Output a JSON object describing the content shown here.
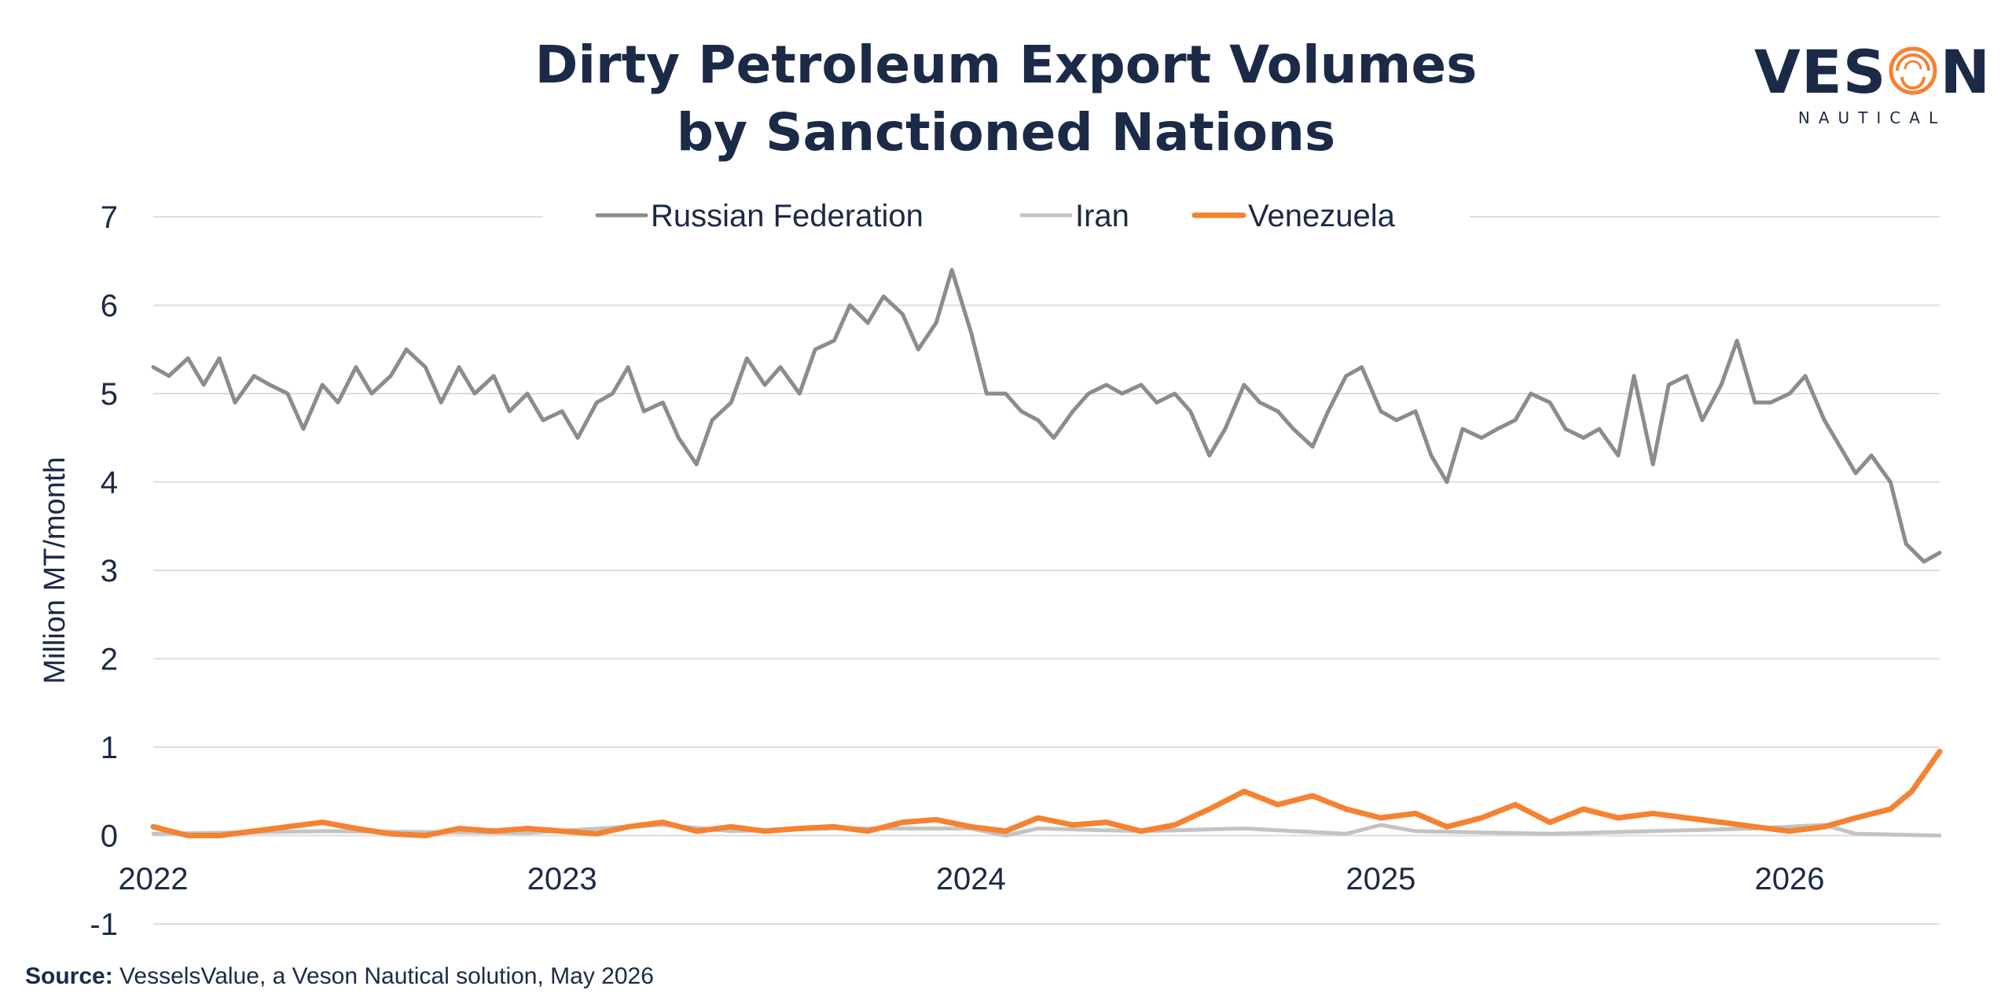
{
  "title_line1": "Dirty Petroleum Export Volumes",
  "title_line2": "by Sanctioned Nations",
  "logo": {
    "main": "VESON",
    "sub": "NAUTICAL"
  },
  "source": {
    "label": "Source:",
    "text": "VesselsValue, a Veson Nautical solution, May 2026"
  },
  "colors": {
    "russia": "#8c8c8c",
    "iran": "#c3c3c3",
    "venezuela": "#f58232",
    "text": "#1b2a47",
    "grid": "#dddddd"
  },
  "chart_data": {
    "type": "line",
    "title": "Dirty Petroleum Export Volumes by Sanctioned Nations",
    "ylabel": "Million MT/month",
    "xlabel": "",
    "ylim": [
      -1,
      7
    ],
    "yticks": [
      "7",
      "6",
      "5",
      "4",
      "3",
      "2",
      "1",
      "0",
      "-1"
    ],
    "xticks": [
      "2022",
      "2023",
      "2024",
      "2025",
      "2026"
    ],
    "xlim": [
      "2022-01-01",
      "2026-05-15"
    ],
    "grid": true,
    "legend": "top-center",
    "series": [
      {
        "name": "Russian Federation",
        "color": "#8c8c8c",
        "points": [
          [
            "2022-01-01",
            5.3
          ],
          [
            "2022-01-15",
            5.2
          ],
          [
            "2022-02-01",
            5.4
          ],
          [
            "2022-02-15",
            5.1
          ],
          [
            "2022-03-01",
            5.4
          ],
          [
            "2022-03-15",
            4.9
          ],
          [
            "2022-04-01",
            5.2
          ],
          [
            "2022-04-15",
            5.1
          ],
          [
            "2022-05-01",
            5.0
          ],
          [
            "2022-05-15",
            4.6
          ],
          [
            "2022-06-01",
            5.1
          ],
          [
            "2022-06-15",
            4.9
          ],
          [
            "2022-07-01",
            5.3
          ],
          [
            "2022-07-15",
            5.0
          ],
          [
            "2022-08-01",
            5.2
          ],
          [
            "2022-08-15",
            5.5
          ],
          [
            "2022-09-01",
            5.3
          ],
          [
            "2022-09-15",
            4.9
          ],
          [
            "2022-10-01",
            5.3
          ],
          [
            "2022-10-15",
            5.0
          ],
          [
            "2022-11-01",
            5.2
          ],
          [
            "2022-11-15",
            4.8
          ],
          [
            "2022-12-01",
            5.0
          ],
          [
            "2022-12-15",
            4.7
          ],
          [
            "2023-01-01",
            4.8
          ],
          [
            "2023-01-15",
            4.5
          ],
          [
            "2023-02-01",
            4.9
          ],
          [
            "2023-02-15",
            5.0
          ],
          [
            "2023-03-01",
            5.3
          ],
          [
            "2023-03-15",
            4.8
          ],
          [
            "2023-04-01",
            4.9
          ],
          [
            "2023-04-15",
            4.5
          ],
          [
            "2023-05-01",
            4.2
          ],
          [
            "2023-05-15",
            4.7
          ],
          [
            "2023-06-01",
            4.9
          ],
          [
            "2023-06-15",
            5.4
          ],
          [
            "2023-07-01",
            5.1
          ],
          [
            "2023-07-15",
            5.3
          ],
          [
            "2023-08-01",
            5.0
          ],
          [
            "2023-08-15",
            5.5
          ],
          [
            "2023-09-01",
            5.6
          ],
          [
            "2023-09-15",
            6.0
          ],
          [
            "2023-10-01",
            5.8
          ],
          [
            "2023-10-15",
            6.1
          ],
          [
            "2023-11-01",
            5.9
          ],
          [
            "2023-11-15",
            5.5
          ],
          [
            "2023-12-01",
            5.8
          ],
          [
            "2023-12-15",
            6.4
          ],
          [
            "2024-01-01",
            5.7
          ],
          [
            "2024-01-15",
            5.0
          ],
          [
            "2024-02-01",
            5.0
          ],
          [
            "2024-02-15",
            4.8
          ],
          [
            "2024-03-01",
            4.7
          ],
          [
            "2024-03-15",
            4.5
          ],
          [
            "2024-04-01",
            4.8
          ],
          [
            "2024-04-15",
            5.0
          ],
          [
            "2024-05-01",
            5.1
          ],
          [
            "2024-05-15",
            5.0
          ],
          [
            "2024-06-01",
            5.1
          ],
          [
            "2024-06-15",
            4.9
          ],
          [
            "2024-07-01",
            5.0
          ],
          [
            "2024-07-15",
            4.8
          ],
          [
            "2024-08-01",
            4.3
          ],
          [
            "2024-08-15",
            4.6
          ],
          [
            "2024-09-01",
            5.1
          ],
          [
            "2024-09-15",
            4.9
          ],
          [
            "2024-10-01",
            4.8
          ],
          [
            "2024-10-15",
            4.6
          ],
          [
            "2024-11-01",
            4.4
          ],
          [
            "2024-11-15",
            4.8
          ],
          [
            "2024-12-01",
            5.2
          ],
          [
            "2024-12-15",
            5.3
          ],
          [
            "2025-01-01",
            4.8
          ],
          [
            "2025-01-15",
            4.7
          ],
          [
            "2025-02-01",
            4.8
          ],
          [
            "2025-02-15",
            4.3
          ],
          [
            "2025-03-01",
            4.0
          ],
          [
            "2025-03-15",
            4.6
          ],
          [
            "2025-04-01",
            4.5
          ],
          [
            "2025-04-15",
            4.6
          ],
          [
            "2025-05-01",
            4.7
          ],
          [
            "2025-05-15",
            5.0
          ],
          [
            "2025-06-01",
            4.9
          ],
          [
            "2025-06-15",
            4.6
          ],
          [
            "2025-07-01",
            4.5
          ],
          [
            "2025-07-15",
            4.6
          ],
          [
            "2025-08-01",
            4.3
          ],
          [
            "2025-08-15",
            5.2
          ],
          [
            "2025-09-01",
            4.2
          ],
          [
            "2025-09-15",
            5.1
          ],
          [
            "2025-10-01",
            5.2
          ],
          [
            "2025-10-15",
            4.7
          ],
          [
            "2025-11-01",
            5.1
          ],
          [
            "2025-11-15",
            5.6
          ],
          [
            "2025-12-01",
            4.9
          ],
          [
            "2025-12-15",
            4.9
          ],
          [
            "2026-01-01",
            5.0
          ],
          [
            "2026-01-15",
            5.2
          ],
          [
            "2026-02-01",
            4.7
          ],
          [
            "2026-02-15",
            4.4
          ],
          [
            "2026-03-01",
            4.1
          ],
          [
            "2026-03-15",
            4.3
          ],
          [
            "2026-04-01",
            4.0
          ],
          [
            "2026-04-15",
            3.3
          ],
          [
            "2026-05-01",
            3.1
          ],
          [
            "2026-05-15",
            3.2
          ]
        ]
      },
      {
        "name": "Iran",
        "color": "#c3c3c3",
        "points": [
          [
            "2022-01-01",
            0.02
          ],
          [
            "2022-06-01",
            0.05
          ],
          [
            "2022-12-01",
            0.03
          ],
          [
            "2023-03-01",
            0.1
          ],
          [
            "2023-04-01",
            0.12
          ],
          [
            "2023-06-01",
            0.05
          ],
          [
            "2023-09-01",
            0.08
          ],
          [
            "2024-01-01",
            0.08
          ],
          [
            "2024-02-01",
            0.0
          ],
          [
            "2024-03-01",
            0.08
          ],
          [
            "2024-06-01",
            0.05
          ],
          [
            "2024-09-01",
            0.08
          ],
          [
            "2024-12-01",
            0.02
          ],
          [
            "2025-01-01",
            0.12
          ],
          [
            "2025-02-01",
            0.05
          ],
          [
            "2025-06-01",
            0.02
          ],
          [
            "2025-09-01",
            0.05
          ],
          [
            "2025-12-01",
            0.08
          ],
          [
            "2026-02-01",
            0.12
          ],
          [
            "2026-03-01",
            0.02
          ],
          [
            "2026-05-15",
            0.0
          ]
        ]
      },
      {
        "name": "Venezuela",
        "color": "#f58232",
        "points": [
          [
            "2022-01-01",
            0.1
          ],
          [
            "2022-02-01",
            0.0
          ],
          [
            "2022-03-01",
            0.0
          ],
          [
            "2022-04-01",
            0.05
          ],
          [
            "2022-05-01",
            0.1
          ],
          [
            "2022-06-01",
            0.15
          ],
          [
            "2022-07-01",
            0.08
          ],
          [
            "2022-08-01",
            0.02
          ],
          [
            "2022-09-01",
            0.0
          ],
          [
            "2022-10-01",
            0.08
          ],
          [
            "2022-11-01",
            0.05
          ],
          [
            "2022-12-01",
            0.08
          ],
          [
            "2023-01-01",
            0.05
          ],
          [
            "2023-02-01",
            0.02
          ],
          [
            "2023-03-01",
            0.1
          ],
          [
            "2023-04-01",
            0.15
          ],
          [
            "2023-05-01",
            0.05
          ],
          [
            "2023-06-01",
            0.1
          ],
          [
            "2023-07-01",
            0.05
          ],
          [
            "2023-08-01",
            0.08
          ],
          [
            "2023-09-01",
            0.1
          ],
          [
            "2023-10-01",
            0.05
          ],
          [
            "2023-11-01",
            0.15
          ],
          [
            "2023-12-01",
            0.18
          ],
          [
            "2024-01-01",
            0.1
          ],
          [
            "2024-02-01",
            0.05
          ],
          [
            "2024-03-01",
            0.2
          ],
          [
            "2024-04-01",
            0.12
          ],
          [
            "2024-05-01",
            0.15
          ],
          [
            "2024-06-01",
            0.05
          ],
          [
            "2024-07-01",
            0.12
          ],
          [
            "2024-08-01",
            0.3
          ],
          [
            "2024-09-01",
            0.5
          ],
          [
            "2024-10-01",
            0.35
          ],
          [
            "2024-11-01",
            0.45
          ],
          [
            "2024-12-01",
            0.3
          ],
          [
            "2025-01-01",
            0.2
          ],
          [
            "2025-02-01",
            0.25
          ],
          [
            "2025-03-01",
            0.1
          ],
          [
            "2025-04-01",
            0.2
          ],
          [
            "2025-05-01",
            0.35
          ],
          [
            "2025-06-01",
            0.15
          ],
          [
            "2025-07-01",
            0.3
          ],
          [
            "2025-08-01",
            0.2
          ],
          [
            "2025-09-01",
            0.25
          ],
          [
            "2025-10-01",
            0.2
          ],
          [
            "2025-11-01",
            0.15
          ],
          [
            "2025-12-01",
            0.1
          ],
          [
            "2026-01-01",
            0.05
          ],
          [
            "2026-02-01",
            0.1
          ],
          [
            "2026-03-01",
            0.2
          ],
          [
            "2026-04-01",
            0.3
          ],
          [
            "2026-04-20",
            0.5
          ],
          [
            "2026-05-15",
            0.95
          ]
        ]
      }
    ]
  }
}
